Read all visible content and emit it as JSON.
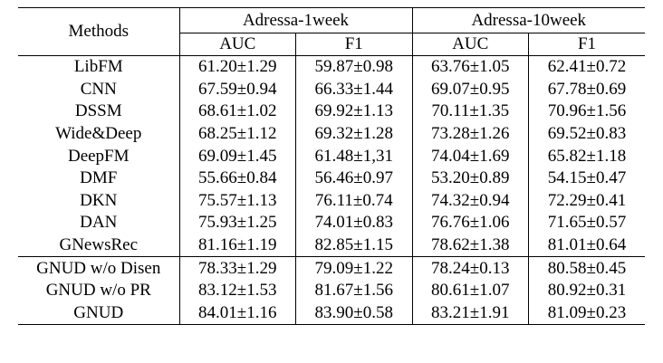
{
  "table": {
    "method_header": "Methods",
    "groups": [
      "Adressa-1week",
      "Adressa-10week"
    ],
    "metrics": [
      "AUC",
      "F1",
      "AUC",
      "F1"
    ],
    "baseline_rows": [
      {
        "method": "LibFM",
        "values": [
          "61.20±1.29",
          "59.87±0.98",
          "63.76±1.05",
          "62.41±0.72"
        ]
      },
      {
        "method": "CNN",
        "values": [
          "67.59±0.94",
          "66.33±1.44",
          "69.07±0.95",
          "67.78±0.69"
        ]
      },
      {
        "method": "DSSM",
        "values": [
          "68.61±1.02",
          "69.92±1.13",
          "70.11±1.35",
          "70.96±1.56"
        ]
      },
      {
        "method": "Wide&Deep",
        "values": [
          "68.25±1.12",
          "69.32±1.28",
          "73.28±1.26",
          "69.52±0.83"
        ]
      },
      {
        "method": "DeepFM",
        "values": [
          "69.09±1.45",
          "61.48±1,31",
          "74.04±1.69",
          "65.82±1.18"
        ]
      },
      {
        "method": "DMF",
        "values": [
          "55.66±0.84",
          "56.46±0.97",
          "53.20±0.89",
          "54.15±0.47"
        ]
      },
      {
        "method": "DKN",
        "values": [
          "75.57±1.13",
          "76.11±0.74",
          "74.32±0.94",
          "72.29±0.41"
        ]
      },
      {
        "method": "DAN",
        "values": [
          "75.93±1.25",
          "74.01±0.83",
          "76.76±1.06",
          "71.65±0.57"
        ]
      },
      {
        "method": "GNewsRec",
        "values": [
          "81.16±1.19",
          "82.85±1.15",
          "78.62±1.38",
          "81.01±0.64"
        ]
      }
    ],
    "proposed_rows": [
      {
        "method": "GNUD w/o Disen",
        "values": [
          "78.33±1.29",
          "79.09±1.22",
          "78.24±0.13",
          "80.58±0.45"
        ]
      },
      {
        "method": "GNUD w/o PR",
        "values": [
          "83.12±1.53",
          "81.67±1.56",
          "80.61±1.07",
          "80.92±0.31"
        ]
      },
      {
        "method": "GNUD",
        "values": [
          "84.01±1.16",
          "83.90±0.58",
          "83.21±1.91",
          "81.09±0.23"
        ],
        "bold": true
      }
    ]
  }
}
